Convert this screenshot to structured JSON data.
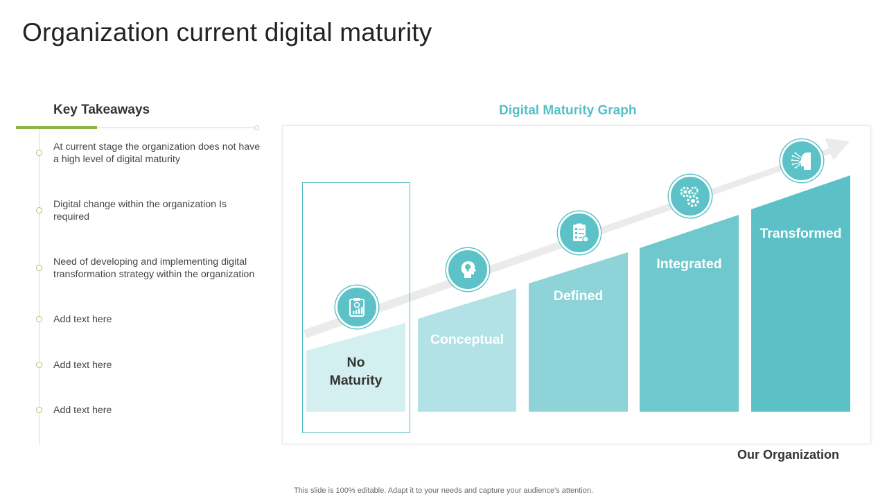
{
  "title": "Organization current digital maturity",
  "takeaways": {
    "heading": "Key Takeaways",
    "items": [
      "At current stage the organization does not have a high level of digital maturity",
      "Digital change within the organization Is required",
      "Need of developing and implementing digital transformation strategy within the organization",
      "Add text here",
      "Add text here",
      "Add text here"
    ]
  },
  "graph": {
    "title": "Digital Maturity Graph",
    "stages": [
      {
        "label": "No Maturity",
        "icon": "report-chart-icon",
        "color": "#d4eff0",
        "text_color": "#333333",
        "highlighted": true
      },
      {
        "label": "Conceptual",
        "icon": "head-lightbulb-icon",
        "color": "#b2e2e5",
        "text_color": "#ffffff"
      },
      {
        "label": "Defined",
        "icon": "checklist-gear-icon",
        "color": "#8dd3d7",
        "text_color": "#ffffff"
      },
      {
        "label": "Integrated",
        "icon": "gears-icon",
        "color": "#6fc8cd",
        "text_color": "#ffffff"
      },
      {
        "label": "Transformed",
        "icon": "digital-head-icon",
        "color": "#5cc1c7",
        "text_color": "#ffffff"
      }
    ],
    "current_position_label": "Our Organization"
  },
  "footer": "This slide is 100% editable. Adapt it to your needs and capture your audience's attention."
}
